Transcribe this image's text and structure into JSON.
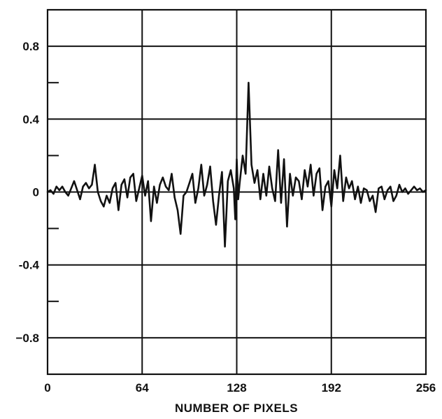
{
  "chart_data": {
    "type": "line",
    "title": "",
    "xlabel": "NUMBER OF PIXELS",
    "ylabel": "",
    "xlim": [
      0,
      256
    ],
    "ylim": [
      -1.0,
      1.0
    ],
    "grid": true,
    "x_ticks": [
      {
        "value": 0,
        "label": "0"
      },
      {
        "value": 64,
        "label": "64"
      },
      {
        "value": 128,
        "label": "128"
      },
      {
        "value": 192,
        "label": "192"
      },
      {
        "value": 256,
        "label": "256"
      }
    ],
    "y_ticks": [
      {
        "value": 0.8,
        "label": "0.8"
      },
      {
        "value": 0.4,
        "label": "0.4"
      },
      {
        "value": 0,
        "label": "0"
      },
      {
        "value": -0.4,
        "label": "-0.4"
      },
      {
        "value": -0.8,
        "label": "−0.8"
      }
    ],
    "y_minor_ticks": [
      1.0,
      0.6,
      0.2,
      -0.2,
      -0.6,
      -1.0
    ],
    "series": [
      {
        "x": [
          0,
          2,
          4,
          6,
          8,
          10,
          12,
          14,
          16,
          18,
          20,
          22,
          24,
          26,
          28,
          30,
          32,
          34,
          36,
          38,
          40,
          42,
          44,
          46,
          48,
          50,
          52,
          54,
          56,
          58,
          60,
          62,
          64,
          66,
          68,
          70,
          72,
          74,
          76,
          78,
          80,
          82,
          84,
          86,
          88,
          90,
          92,
          94,
          96,
          98,
          100,
          102,
          104,
          106,
          108,
          110,
          112,
          114,
          116,
          118,
          120,
          122,
          124,
          126,
          127,
          128,
          129,
          130,
          132,
          134,
          136,
          138,
          140,
          142,
          144,
          146,
          148,
          150,
          152,
          154,
          156,
          158,
          160,
          162,
          164,
          166,
          168,
          170,
          172,
          174,
          176,
          178,
          180,
          182,
          184,
          186,
          188,
          190,
          192,
          194,
          196,
          198,
          200,
          202,
          204,
          206,
          208,
          210,
          212,
          214,
          216,
          218,
          220,
          222,
          224,
          226,
          228,
          230,
          232,
          234,
          236,
          238,
          240,
          242,
          244,
          246,
          248,
          250,
          252,
          254,
          256
        ],
        "y": [
          0,
          0.01,
          -0.01,
          0.03,
          0.01,
          0.03,
          0,
          -0.02,
          0.02,
          0.06,
          0.01,
          -0.04,
          0.03,
          0.05,
          0.02,
          0.04,
          0.15,
          0,
          -0.05,
          -0.08,
          -0.02,
          -0.06,
          0.02,
          0.05,
          -0.1,
          0.04,
          0.07,
          -0.03,
          0.08,
          0.1,
          -0.05,
          0.02,
          0.09,
          -0.02,
          0.06,
          -0.16,
          0.03,
          -0.06,
          0.04,
          0.08,
          0.03,
          0.01,
          0.1,
          -0.03,
          -0.1,
          -0.23,
          -0.02,
          0,
          0.05,
          0.1,
          -0.06,
          0.02,
          0.15,
          -0.02,
          0.04,
          0.14,
          -0.05,
          -0.18,
          -0.02,
          0.11,
          -0.3,
          0.06,
          0.12,
          0.02,
          -0.15,
          0.18,
          -0.04,
          0.05,
          0.2,
          0.1,
          0.6,
          0.15,
          0.05,
          0.12,
          -0.04,
          0.1,
          -0.02,
          0.14,
          0.02,
          -0.05,
          0.23,
          -0.06,
          0.18,
          -0.19,
          0.1,
          -0.02,
          0.08,
          0.06,
          -0.04,
          0.12,
          0.03,
          0.15,
          -0.02,
          0.1,
          0.13,
          -0.1,
          0.03,
          0.06,
          -0.08,
          0.12,
          0.02,
          0.2,
          -0.05,
          0.08,
          0.02,
          0.06,
          -0.04,
          0.03,
          -0.06,
          0.02,
          0.01,
          -0.05,
          -0.02,
          -0.11,
          0.02,
          0.03,
          -0.04,
          0.01,
          0.03,
          -0.05,
          -0.02,
          0.04,
          0,
          0.02,
          -0.01,
          0.01,
          0.03,
          0.01,
          0.02,
          0,
          0.01
        ]
      }
    ]
  }
}
